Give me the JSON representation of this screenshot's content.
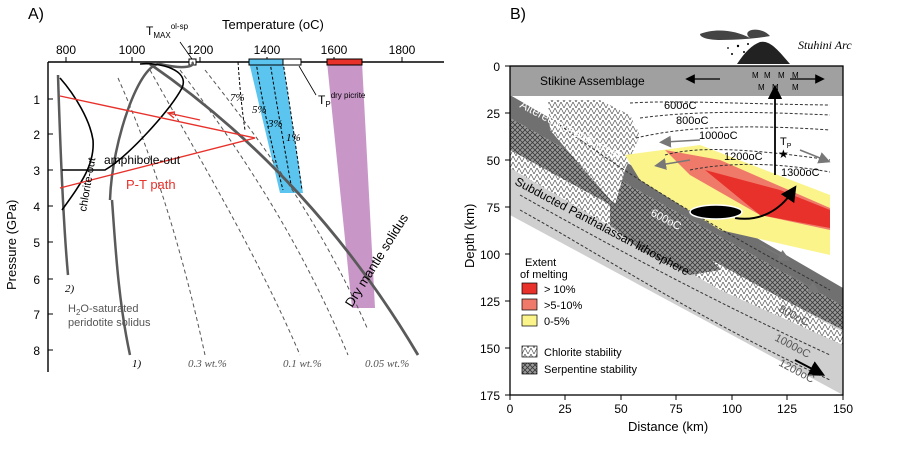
{
  "panel_a": {
    "letter": "A)",
    "temperature_axis_title": "Temperature (",
    "temperature_axis_unit": "oC)",
    "pressure_axis_title": "Pressure (GPa)",
    "temp_ticks": [
      "800",
      "1000",
      "1200",
      "1400",
      "1600",
      "1800"
    ],
    "pressure_ticks": [
      "1",
      "2",
      "3",
      "4",
      "5",
      "6",
      "7",
      "8"
    ],
    "tmax_label": "T",
    "tmax_sub": "MAX",
    "tmax_sup": "ol-sp",
    "tp_label": "T",
    "tp_sub": "P",
    "tp_sup": "dry picrite",
    "melt_percent_labels": [
      "7%",
      "5%",
      "3%",
      "1%"
    ],
    "chlorite_out": "chlorite-out",
    "amphibole_out": "amphibole-out",
    "pt_path": "P-T path",
    "curve_label_2": "2)",
    "curve_label_1": "1)",
    "wet_solidus_line1": "H",
    "wet_solidus_sub": "2",
    "wet_solidus_line1_rest": "O-saturated",
    "wet_solidus_line2": "peridotite solidus",
    "dry_solidus": "Dry mantle solidus",
    "water_content_labels": [
      "0.3 wt.%",
      "0.1 wt.%",
      "0.05 wt.%"
    ],
    "colors": {
      "pt_path": "#e8312a",
      "melt_band": "#5bc4ef",
      "dry_band": "#c897c8",
      "solidus": "#5a5a5a"
    }
  },
  "panel_b": {
    "letter": "B)",
    "arc_label": "Stuhini Arc",
    "stikine": "Stikine Assemblage",
    "oceanic_crust": "Altered oceanic crust",
    "lithosphere": "Subducted Panthalassan lithosphere",
    "depth_axis_title": "Depth (km)",
    "distance_axis_title": "Distance (km)",
    "depth_ticks": [
      "0",
      "25",
      "50",
      "75",
      "100",
      "125",
      "150",
      "175"
    ],
    "distance_ticks": [
      "0",
      "25",
      "50",
      "75",
      "100",
      "125",
      "150"
    ],
    "isotherms_mantle": [
      "600oC",
      "800oC",
      "1000oC",
      "1200oC",
      "1300oC"
    ],
    "isotherm_slab_600": "600oC",
    "isotherms_slab": [
      "800oC",
      "1000oC",
      "1200oC"
    ],
    "t_marker": "T",
    "t_marker_sub": "P",
    "legend_title_1": "Extent",
    "legend_title_2": "of melting",
    "legend_items": [
      {
        "label": "> 10%",
        "color": "#e8312a"
      },
      {
        "label": ">5-10%",
        "color": "#f07a6a"
      },
      {
        "label": "0-5%",
        "color": "#fbf48a"
      }
    ],
    "chlorite_stability": "Chlorite stability",
    "serpentine_stability": "Serpentine stability",
    "m_marks": [
      "M",
      "M",
      "M",
      "M",
      "M",
      "M",
      "M"
    ]
  }
}
